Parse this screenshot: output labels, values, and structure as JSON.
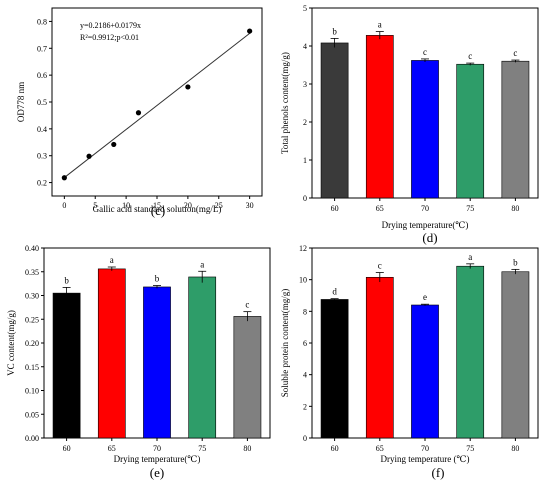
{
  "panels": [
    {
      "id": "c",
      "type": "scatter",
      "panel_label": "(c)",
      "xlabel": "Gallic acid standard solution(mg/L)",
      "ylabel": "OD778 nm",
      "equation": "y=0.2186+0.0179x",
      "r2_text": "R²=0.9912;p<0.01",
      "x_ticks": [
        "0",
        "5",
        "10",
        "15",
        "20",
        "25",
        "30"
      ],
      "y_ticks": [
        "0.2",
        "0.3",
        "0.4",
        "0.5",
        "0.6",
        "0.7",
        "0.8"
      ],
      "xlim": [
        -2,
        32
      ],
      "ylim": [
        0.15,
        0.85
      ],
      "points": [
        {
          "x": 0,
          "y": 0.218
        },
        {
          "x": 4,
          "y": 0.298
        },
        {
          "x": 8,
          "y": 0.342
        },
        {
          "x": 12,
          "y": 0.46
        },
        {
          "x": 20,
          "y": 0.556
        },
        {
          "x": 30,
          "y": 0.764
        }
      ],
      "fit": {
        "intercept": 0.2186,
        "slope": 0.0179
      }
    },
    {
      "id": "d",
      "type": "bar",
      "panel_label": "(d)",
      "xlabel": "Drying temperature(℃)",
      "ylabel": "Total phenols content(mg/g)",
      "categories": [
        "60",
        "65",
        "70",
        "75",
        "80"
      ],
      "values": [
        4.08,
        4.28,
        3.62,
        3.52,
        3.6
      ],
      "errors": [
        0.12,
        0.1,
        0.04,
        0.03,
        0.03
      ],
      "letters": [
        "b",
        "a",
        "c",
        "c",
        "c"
      ],
      "colors": [
        "#3a3a3a",
        "#ff0000",
        "#0000ff",
        "#2e9d69",
        "#808080"
      ],
      "y_ticks": [
        "0",
        "1",
        "2",
        "3",
        "4",
        "5"
      ],
      "ylim": [
        0,
        5
      ]
    },
    {
      "id": "e",
      "type": "bar",
      "panel_label": "(e)",
      "xlabel": "Drying temperature(℃)",
      "ylabel": "VC content(mg/g)",
      "categories": [
        "60",
        "65",
        "70",
        "75",
        "80"
      ],
      "values": [
        0.305,
        0.356,
        0.318,
        0.339,
        0.256
      ],
      "errors": [
        0.012,
        0.004,
        0.003,
        0.012,
        0.01
      ],
      "letters": [
        "b",
        "a",
        "b",
        "a",
        "c"
      ],
      "colors": [
        "#000000",
        "#ff0000",
        "#0000ff",
        "#2e9d69",
        "#808080"
      ],
      "y_ticks": [
        "0.00",
        "0.05",
        "0.10",
        "0.15",
        "0.20",
        "0.25",
        "0.30",
        "0.35",
        "0.40"
      ],
      "ylim": [
        0,
        0.4
      ]
    },
    {
      "id": "f",
      "type": "bar",
      "panel_label": "(f)",
      "xlabel": "Drying temperature (℃)",
      "ylabel": "Soluble protein content(mg/g)",
      "categories": [
        "60",
        "65",
        "70",
        "75",
        "80"
      ],
      "values": [
        8.75,
        10.15,
        8.4,
        10.85,
        10.5
      ],
      "errors": [
        0.05,
        0.3,
        0.05,
        0.15,
        0.15
      ],
      "letters": [
        "d",
        "c",
        "e",
        "a",
        "b"
      ],
      "colors": [
        "#000000",
        "#ff0000",
        "#0000ff",
        "#2e9d69",
        "#808080"
      ],
      "y_ticks": [
        "0",
        "2",
        "4",
        "6",
        "8",
        "10",
        "12"
      ],
      "ylim": [
        0,
        12
      ]
    }
  ]
}
